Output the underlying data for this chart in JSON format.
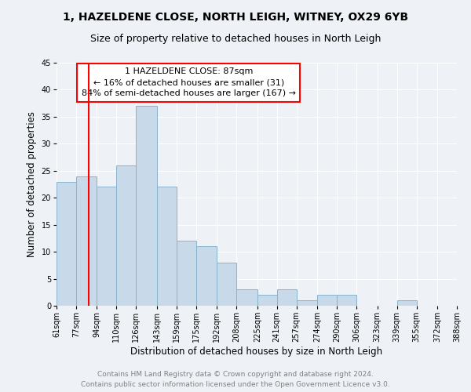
{
  "title": "1, HAZELDENE CLOSE, NORTH LEIGH, WITNEY, OX29 6YB",
  "subtitle": "Size of property relative to detached houses in North Leigh",
  "xlabel": "Distribution of detached houses by size in North Leigh",
  "ylabel": "Number of detached properties",
  "bin_edges": [
    61,
    77,
    94,
    110,
    126,
    143,
    159,
    175,
    192,
    208,
    225,
    241,
    257,
    274,
    290,
    306,
    323,
    339,
    355,
    372,
    388
  ],
  "bar_heights": [
    23,
    24,
    22,
    26,
    37,
    22,
    12,
    11,
    8,
    3,
    2,
    3,
    1,
    2,
    2,
    0,
    0,
    1,
    0,
    0
  ],
  "bar_color": "#c8daea",
  "bar_edge_color": "#8ab4cc",
  "bar_linewidth": 0.7,
  "red_line_x": 87,
  "annotation_text": "1 HAZELDENE CLOSE: 87sqm\n← 16% of detached houses are smaller (31)\n84% of semi-detached houses are larger (167) →",
  "annotation_box_color": "white",
  "annotation_box_edge_color": "red",
  "ylim": [
    0,
    45
  ],
  "yticks": [
    0,
    5,
    10,
    15,
    20,
    25,
    30,
    35,
    40,
    45
  ],
  "tick_labels": [
    "61sqm",
    "77sqm",
    "94sqm",
    "110sqm",
    "126sqm",
    "143sqm",
    "159sqm",
    "175sqm",
    "192sqm",
    "208sqm",
    "225sqm",
    "241sqm",
    "257sqm",
    "274sqm",
    "290sqm",
    "306sqm",
    "323sqm",
    "339sqm",
    "355sqm",
    "372sqm",
    "388sqm"
  ],
  "footer_line1": "Contains HM Land Registry data © Crown copyright and database right 2024.",
  "footer_line2": "Contains public sector information licensed under the Open Government Licence v3.0.",
  "background_color": "#eef2f6",
  "grid_color": "white",
  "title_fontsize": 10,
  "subtitle_fontsize": 9,
  "axis_label_fontsize": 8.5,
  "tick_fontsize": 7,
  "footer_fontsize": 6.5,
  "annotation_fontsize": 8
}
